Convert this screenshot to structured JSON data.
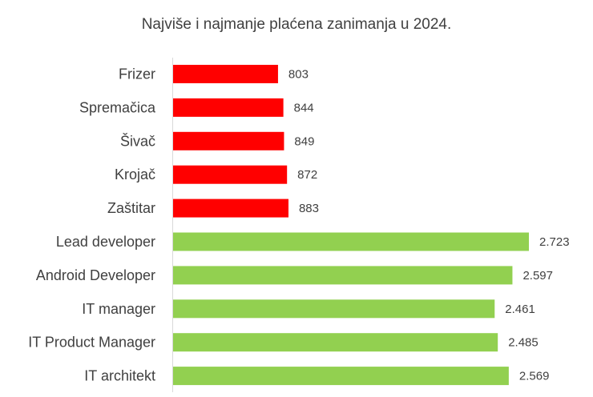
{
  "chart_data": {
    "type": "bar",
    "orientation": "horizontal",
    "title": "Najviše i najmanje plaćena zanimanja u 2024.",
    "xlabel": "",
    "ylabel": "",
    "categories": [
      "Frizer",
      "Spremačica",
      "Šivač",
      "Krojač",
      "Zaštitar",
      "Lead developer",
      "Android Developer",
      "IT manager",
      "IT Product Manager",
      "IT architekt"
    ],
    "values": [
      803,
      844,
      849,
      872,
      883,
      2723,
      2597,
      2461,
      2485,
      2569
    ],
    "value_labels": [
      "803",
      "844",
      "849",
      "872",
      "883",
      "2.723",
      "2.597",
      "2.461",
      "2.485",
      "2.569"
    ],
    "bar_colors": [
      "#ff0000",
      "#ff0000",
      "#ff0000",
      "#ff0000",
      "#ff0000",
      "#92d050",
      "#92d050",
      "#92d050",
      "#92d050",
      "#92d050"
    ],
    "xlim": [
      0,
      2723
    ],
    "grid": false,
    "legend": "none"
  }
}
